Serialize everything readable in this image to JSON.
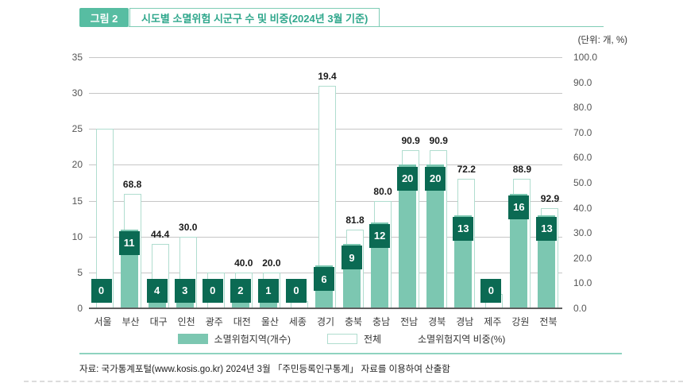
{
  "figure": {
    "badge": "그림 2",
    "title": "시도별 소멸위험 시군구 수 및 비중(2024년 3월 기준)",
    "unit_note": "(단위: 개, %)"
  },
  "chart_data": {
    "type": "bar",
    "categories": [
      "서울",
      "부산",
      "대구",
      "인천",
      "광주",
      "대전",
      "울산",
      "세종",
      "경기",
      "충북",
      "충남",
      "전남",
      "경북",
      "경남",
      "제주",
      "강원",
      "전북"
    ],
    "series": [
      {
        "name": "소멸위험지역(개수)",
        "axis": "left",
        "style": "filled-bar",
        "values": [
          0,
          11,
          4,
          3,
          0,
          2,
          1,
          0,
          6,
          9,
          12,
          20,
          20,
          13,
          0,
          16,
          13
        ]
      },
      {
        "name": "전체",
        "axis": "left",
        "style": "outline-bar",
        "values": [
          25,
          16,
          9,
          10,
          5,
          5,
          5,
          1,
          31,
          11,
          15,
          22,
          22,
          18,
          2,
          18,
          14
        ]
      },
      {
        "name": "소멸위험지역 비중(%)",
        "axis": "right",
        "style": "label-above-bar",
        "labels": [
          "",
          "68.8",
          "44.4",
          "30.0",
          "",
          "40.0",
          "20.0",
          "",
          "19.4",
          "81.8",
          "80.0",
          "90.9",
          "90.9",
          "72.2",
          "",
          "88.9",
          "92.9"
        ]
      }
    ],
    "left_axis": {
      "min": 0,
      "max": 35,
      "step": 5
    },
    "right_axis": {
      "min": 0,
      "max": 100,
      "step": 10
    },
    "grid": true,
    "legend_position": "bottom"
  },
  "legend": {
    "items": [
      {
        "label": "소멸위험지역(개수)",
        "swatch": "filled"
      },
      {
        "label": "전체",
        "swatch": "outline"
      },
      {
        "label": "소멸위험지역 비중(%)",
        "swatch": "none"
      }
    ]
  },
  "source": "자료: 국가통계포털(www.kosis.go.kr) 2024년 3월 「주민등록인구통계」 자료를 이용하여 산출함",
  "colors": {
    "accent_teal": "#57bda2",
    "title_text": "#2fa78c",
    "title_border": "#7fccb5",
    "bar_fill": "#7cc7b1",
    "bar_outline_border": "#b0ddcf",
    "count_box": "#0b6a53",
    "separator": "#8ed3bf"
  }
}
